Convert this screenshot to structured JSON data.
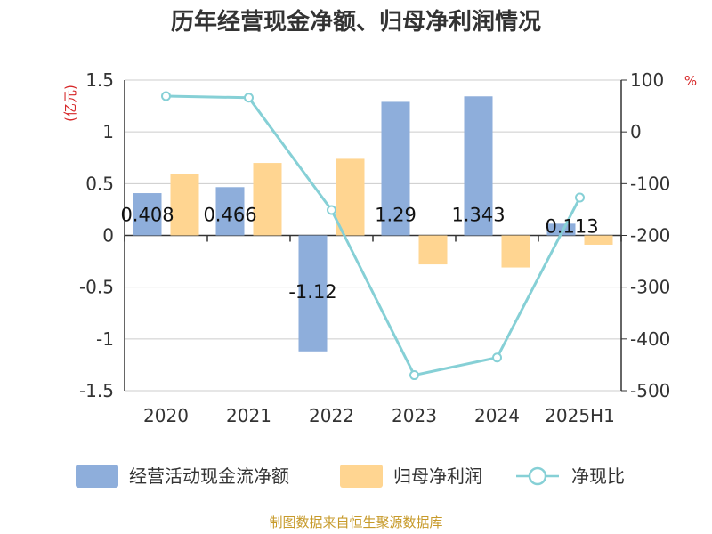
{
  "chart_data": {
    "type": "bar",
    "title": "历年经营现金净额、归母净利润情况",
    "categories": [
      "2020",
      "2021",
      "2022",
      "2023",
      "2024",
      "2025H1"
    ],
    "series": [
      {
        "name": "经营活动现金流净额",
        "kind": "bar",
        "axis": "left",
        "color": "#8eaedb",
        "values": [
          0.408,
          0.466,
          -1.12,
          1.29,
          1.343,
          0.113
        ]
      },
      {
        "name": "归母净利润",
        "kind": "bar",
        "axis": "left",
        "color": "#ffd591",
        "values": [
          0.59,
          0.7,
          0.74,
          -0.28,
          -0.31,
          -0.09
        ]
      },
      {
        "name": "净现比",
        "kind": "line",
        "axis": "right",
        "color": "#86d0d6",
        "values": [
          69,
          66,
          -151,
          -470,
          -436,
          -127
        ]
      }
    ],
    "left_axis": {
      "unit": "(亿元)",
      "ylim": [
        -1.5,
        1.5
      ],
      "ticks": [
        1.5,
        1,
        0.5,
        0,
        -0.5,
        -1,
        -1.5
      ],
      "tick_labels": [
        "1.5",
        "1",
        "0.5",
        "0",
        "-0.5",
        "-1",
        "-1.5"
      ]
    },
    "right_axis": {
      "unit": "%",
      "ylim": [
        -500,
        100
      ],
      "ticks": [
        100,
        0,
        -100,
        -200,
        -300,
        -400,
        -500
      ],
      "tick_labels": [
        "100",
        "0",
        "-100",
        "-200",
        "-300",
        "-400",
        "-500"
      ]
    },
    "data_labels": [
      "0.408",
      "0.466",
      "-1.12",
      "1.29",
      "1.343",
      "0.113"
    ],
    "grid": true,
    "legend_position": "bottom"
  },
  "source": "制图数据来自恒生聚源数据库"
}
